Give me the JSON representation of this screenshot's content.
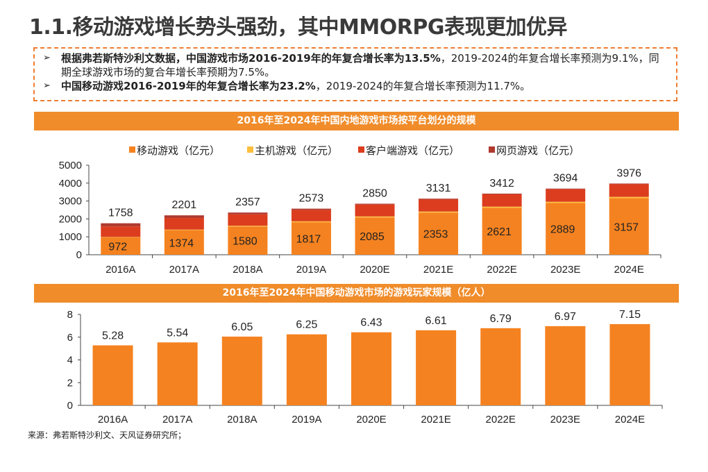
{
  "title": "1.1.移动游戏增长势头强劲，其中MMORPG表现更加优异",
  "bullets": [
    {
      "bold": "根据弗若斯特沙利文数据，中国游戏市场2016-2019年的年复合增长率为13.5%",
      "normal": "，2019-2024的年复合增长率预测为9.1%，同期全球游戏市场的复合年增长率预期为7.5%。"
    },
    {
      "bold": "中国移动游戏2016-2019年的年复合增长率为23.2%",
      "normal": "，2019-2024的年复合增长率预测为11.7%。"
    }
  ],
  "bullet_icon": "arrowhead-icon",
  "source": "来源：弗若斯特沙利文、天风证券研究所；",
  "colors": {
    "accent": "#f08c2a",
    "mobile": "#f58220",
    "console": "#fbbf3c",
    "client": "#dc3d1e",
    "web": "#b03a2e"
  },
  "chart_data": [
    {
      "type": "bar",
      "stacked": true,
      "title": "2016年至2024年中国内地游戏市场按平台划分的规模",
      "categories": [
        "2016A",
        "2017A",
        "2018A",
        "2019A",
        "2020E",
        "2021E",
        "2022E",
        "2023E",
        "2024E"
      ],
      "series": [
        {
          "name": "移动游戏（亿元）",
          "values": [
            972,
            1374,
            1580,
            1817,
            2085,
            2353,
            2621,
            2889,
            3157
          ]
        },
        {
          "name": "主机游戏（亿元）",
          "values": [
            20,
            30,
            40,
            50,
            55,
            60,
            65,
            70,
            75
          ]
        },
        {
          "name": "客户端游戏（亿元）",
          "values": [
            586,
            647,
            637,
            626,
            660,
            670,
            685,
            695,
            705
          ]
        },
        {
          "name": "网页游戏（亿元）",
          "values": [
            180,
            150,
            100,
            80,
            50,
            48,
            41,
            40,
            39
          ]
        }
      ],
      "totals": [
        1758,
        2201,
        2357,
        2573,
        2850,
        3131,
        3412,
        3694,
        3976
      ],
      "ylim": [
        0,
        5000
      ],
      "yticks": [
        0,
        1000,
        2000,
        3000,
        4000,
        5000
      ],
      "legend": "top",
      "grid": false
    },
    {
      "type": "bar",
      "title": "2016年至2024年中国移动游戏市场的游戏玩家规模（亿人）",
      "categories": [
        "2016A",
        "2017A",
        "2018A",
        "2019A",
        "2020E",
        "2021E",
        "2022E",
        "2023E",
        "2024E"
      ],
      "values": [
        5.28,
        5.54,
        6.05,
        6.25,
        6.43,
        6.61,
        6.79,
        6.97,
        7.15
      ],
      "ylim": [
        0,
        8
      ],
      "yticks": [
        0,
        2,
        4,
        6,
        8
      ],
      "grid": false
    }
  ]
}
